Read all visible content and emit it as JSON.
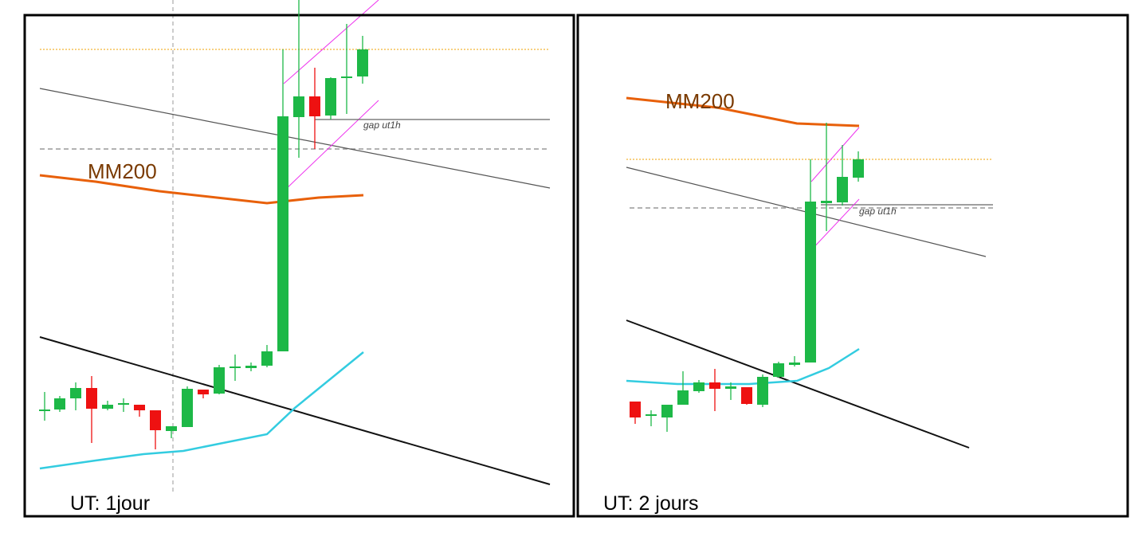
{
  "panels": [
    {
      "ma_label": "MM200",
      "gap_label": "gap ut1h",
      "caption": "UT: 1jour"
    },
    {
      "ma_label": "MM200",
      "gap_label": "gap ut1h",
      "caption": "UT: 2 jours"
    }
  ]
}
